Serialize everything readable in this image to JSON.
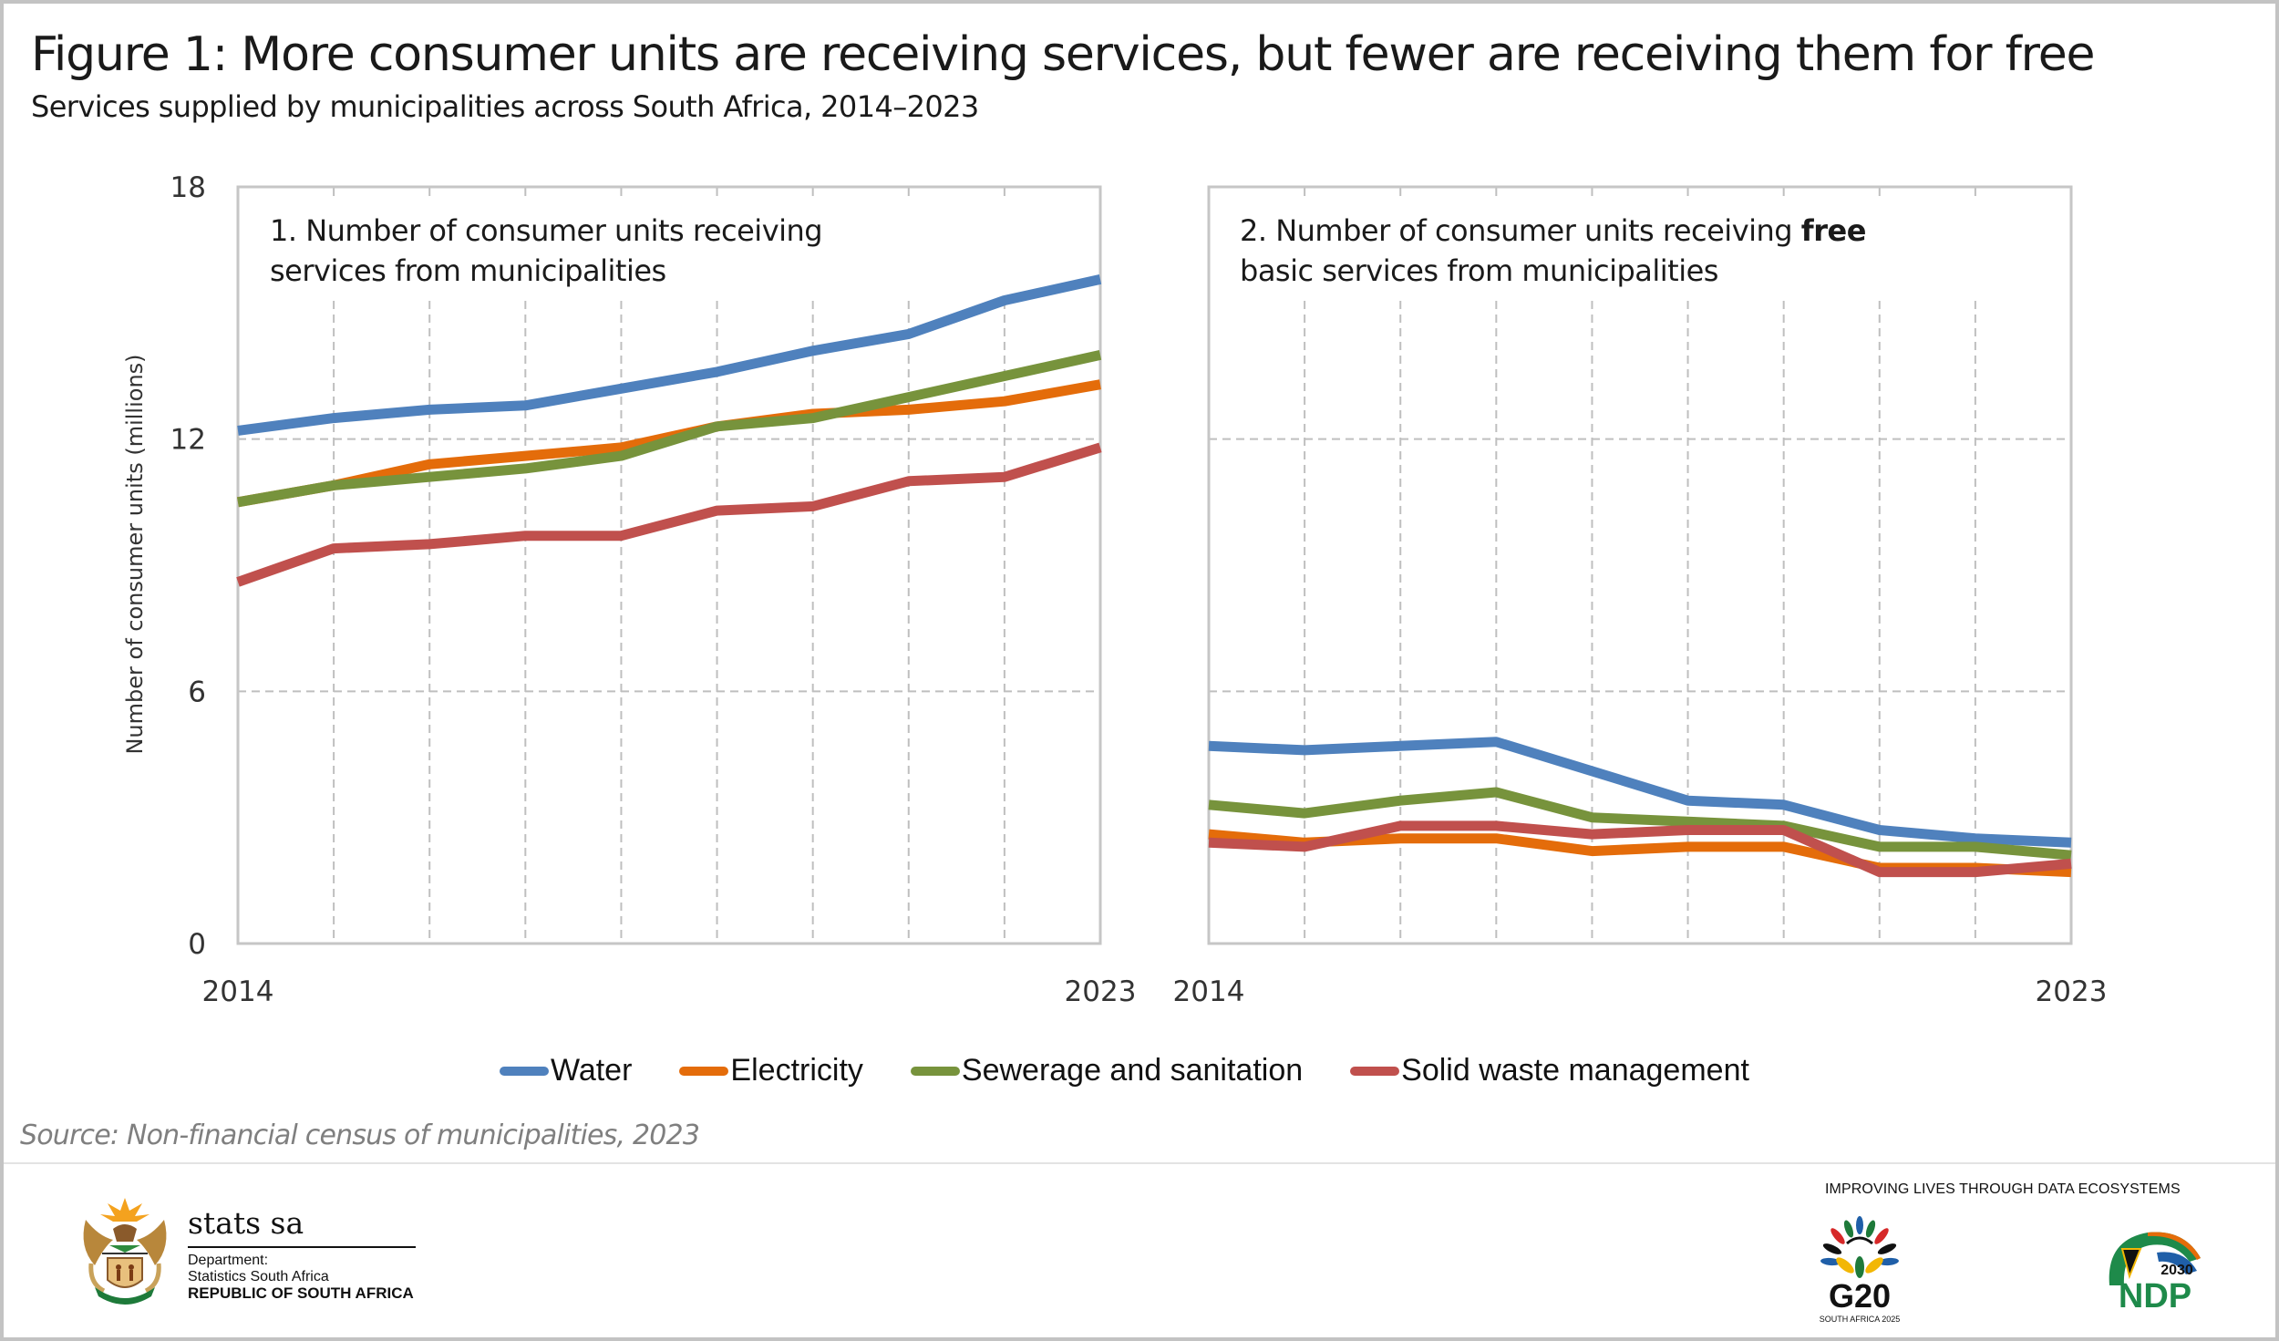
{
  "header": {
    "title": "Figure 1: More consumer units are receiving services, but fewer are receiving them for free",
    "subtitle": "Services supplied by municipalities across South Africa, 2014–2023"
  },
  "colors": {
    "water": "#4f81bd",
    "electricity": "#e46c0a",
    "sewerage": "#77933c",
    "solid_waste": "#c0504d"
  },
  "chart_data": [
    {
      "type": "line",
      "title": "1. Number of consumer units receiving services from municipalities",
      "title_lines": [
        "1. Number of consumer units receiving",
        "services from municipalities"
      ],
      "xlabel": "",
      "ylabel": "Number of consumer units (millions)",
      "x": [
        2014,
        2015,
        2016,
        2017,
        2018,
        2019,
        2020,
        2021,
        2022,
        2023
      ],
      "x_tick_labels": [
        "2014",
        "2023"
      ],
      "y_ticks": [
        0,
        6,
        12,
        18
      ],
      "ylim": [
        0,
        18
      ],
      "grid": "dashed",
      "series": [
        {
          "name": "Water",
          "values": [
            12.2,
            12.5,
            12.7,
            12.8,
            13.2,
            13.6,
            14.1,
            14.5,
            15.3,
            15.8
          ]
        },
        {
          "name": "Electricity",
          "values": [
            10.5,
            10.9,
            11.4,
            11.6,
            11.8,
            12.3,
            12.6,
            12.7,
            12.9,
            13.3
          ]
        },
        {
          "name": "Sewerage and sanitation",
          "values": [
            10.5,
            10.9,
            11.1,
            11.3,
            11.6,
            12.3,
            12.5,
            13.0,
            13.5,
            14.0
          ]
        },
        {
          "name": "Solid waste management",
          "values": [
            8.6,
            9.4,
            9.5,
            9.7,
            9.7,
            10.3,
            10.4,
            11.0,
            11.1,
            11.8
          ]
        }
      ]
    },
    {
      "type": "line",
      "title": "2. Number of consumer units receiving free basic services from municipalities",
      "title_lines": [
        "2. Number of consumer units receiving ",
        "free",
        "basic services from municipalities"
      ],
      "xlabel": "",
      "ylabel": "",
      "x": [
        2014,
        2015,
        2016,
        2017,
        2018,
        2019,
        2020,
        2021,
        2022,
        2023
      ],
      "x_tick_labels": [
        "2014",
        "2023"
      ],
      "y_ticks": [
        0,
        6,
        12,
        18
      ],
      "ylim": [
        0,
        18
      ],
      "grid": "dashed",
      "series": [
        {
          "name": "Water",
          "values": [
            4.7,
            4.6,
            4.7,
            4.8,
            4.1,
            3.4,
            3.3,
            2.7,
            2.5,
            2.4
          ]
        },
        {
          "name": "Electricity",
          "values": [
            2.6,
            2.4,
            2.5,
            2.5,
            2.2,
            2.3,
            2.3,
            1.8,
            1.8,
            1.7
          ]
        },
        {
          "name": "Sewerage and sanitation",
          "values": [
            3.3,
            3.1,
            3.4,
            3.6,
            3.0,
            2.9,
            2.8,
            2.3,
            2.3,
            2.1
          ]
        },
        {
          "name": "Solid waste management",
          "values": [
            2.4,
            2.3,
            2.8,
            2.8,
            2.6,
            2.7,
            2.7,
            1.7,
            1.7,
            1.9
          ]
        }
      ]
    }
  ],
  "legend": {
    "position": "bottom",
    "items": [
      {
        "label": "Water",
        "color_key": "water"
      },
      {
        "label": "Electricity",
        "color_key": "electricity"
      },
      {
        "label": "Sewerage and sanitation",
        "color_key": "sewerage"
      },
      {
        "label": "Solid waste management",
        "color_key": "solid_waste"
      }
    ]
  },
  "source": "Source: Non-financial census of municipalities, 2023",
  "footer": {
    "logo_name": "stats sa",
    "department_label": "Department:",
    "department_name": "Statistics South Africa",
    "country": "REPUBLIC OF SOUTH AFRICA",
    "tagline": "IMPROVING LIVES THROUGH DATA ECOSYSTEMS",
    "g20_label": "G20",
    "g20_sub": "SOUTH AFRICA 2025",
    "ndp_label": "NDP",
    "ndp_year": "2030"
  }
}
